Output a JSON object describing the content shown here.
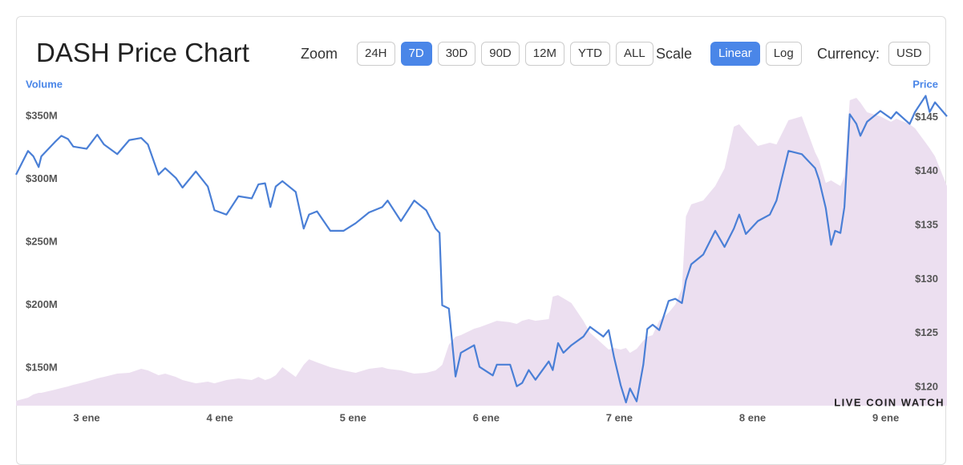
{
  "controls": {
    "zoom_label": "Zoom",
    "zoom_options": [
      {
        "label": "24H"
      },
      {
        "label": "7D",
        "active": true
      },
      {
        "label": "30D"
      },
      {
        "label": "90D"
      },
      {
        "label": "12M"
      },
      {
        "label": "YTD"
      },
      {
        "label": "ALL"
      }
    ],
    "scale_label": "Scale",
    "scale_options": [
      {
        "label": "Linear",
        "active": true
      },
      {
        "label": "Log"
      }
    ],
    "currency_label": "Currency:",
    "currency": "USD"
  },
  "watermark": "LIVE COIN WATCH",
  "chart_data": {
    "type": "line",
    "title": "DASH Price Chart",
    "ylabel": "Volume",
    "y2label": "Price",
    "grid": false,
    "x": [
      2.47,
      2.56,
      2.6,
      2.64,
      2.66,
      2.76,
      2.81,
      2.86,
      2.9,
      3,
      3.08,
      3.13,
      3.23,
      3.32,
      3.41,
      3.46,
      3.54,
      3.59,
      3.67,
      3.72,
      3.82,
      3.91,
      3.96,
      4.05,
      4.14,
      4.24,
      4.29,
      4.34,
      4.38,
      4.42,
      4.47,
      4.57,
      4.63,
      4.67,
      4.73,
      4.83,
      4.93,
      5.02,
      5.12,
      5.22,
      5.26,
      5.36,
      5.46,
      5.55,
      5.62,
      5.65,
      5.67,
      5.72,
      5.77,
      5.81,
      5.91,
      5.95,
      6.05,
      6.08,
      6.18,
      6.23,
      6.27,
      6.32,
      6.37,
      6.47,
      6.5,
      6.54,
      6.58,
      6.64,
      6.73,
      6.78,
      6.88,
      6.92,
      6.96,
      7.01,
      7.05,
      7.08,
      7.13,
      7.18,
      7.21,
      7.25,
      7.3,
      7.37,
      7.42,
      7.47,
      7.5,
      7.54,
      7.63,
      7.72,
      7.79,
      7.86,
      7.9,
      7.95,
      8.04,
      8.13,
      8.18,
      8.27,
      8.37,
      8.47,
      8.5,
      8.55,
      8.59,
      8.62,
      8.66,
      8.69,
      8.73,
      8.78,
      8.81,
      8.86,
      8.96,
      9.04,
      9.08,
      9.18,
      9.22,
      9.3,
      9.33,
      9.37,
      9.46
    ],
    "xlim": [
      2.47,
      9.46
    ],
    "xticks": [
      {
        "value": 3,
        "label": "3 ene"
      },
      {
        "value": 4,
        "label": "4 ene"
      },
      {
        "value": 5,
        "label": "5 ene"
      },
      {
        "value": 6,
        "label": "6 ene"
      },
      {
        "value": 7,
        "label": "7 ene"
      },
      {
        "value": 8,
        "label": "8 ene"
      },
      {
        "value": 9,
        "label": "9 ene"
      }
    ],
    "ylim": [
      120,
      380
    ],
    "yticks": [
      {
        "value": 150,
        "label": "$150M"
      },
      {
        "value": 200,
        "label": "$200M"
      },
      {
        "value": 250,
        "label": "$250M"
      },
      {
        "value": 300,
        "label": "$300M"
      },
      {
        "value": 350,
        "label": "$350M"
      }
    ],
    "y2lim": [
      118.3,
      148.6
    ],
    "y2ticks": [
      {
        "value": 120,
        "label": "$120"
      },
      {
        "value": 125,
        "label": "$125"
      },
      {
        "value": 130,
        "label": "$130"
      },
      {
        "value": 135,
        "label": "$135"
      },
      {
        "value": 140,
        "label": "$140"
      },
      {
        "value": 145,
        "label": "$145"
      }
    ],
    "series": [
      {
        "type": "area",
        "color": "#ecdff0",
        "values": [
          123.8,
          126.4,
          128.9,
          130.2,
          130.2,
          132.7,
          134.0,
          135.3,
          136.6,
          139.1,
          141.7,
          142.9,
          145.5,
          146.1,
          149.3,
          148.0,
          144.2,
          145.5,
          142.9,
          140.4,
          137.8,
          139.1,
          137.8,
          140.4,
          141.7,
          140.4,
          142.9,
          140.4,
          141.7,
          144.2,
          150.6,
          142.9,
          152.5,
          156.9,
          154.4,
          150.6,
          148.0,
          146.1,
          149.3,
          150.6,
          149.3,
          148.0,
          145.5,
          146.1,
          148.0,
          150.6,
          152.5,
          168.4,
          174.8,
          176.1,
          181.2,
          182.4,
          186.3,
          187.5,
          186.3,
          185.0,
          187.5,
          188.8,
          187.5,
          188.8,
          206.7,
          207.9,
          205.4,
          201.6,
          187.5,
          178.0,
          168.4,
          164.6,
          165.9,
          164.6,
          165.9,
          162.0,
          165.2,
          171.6,
          174.8,
          176.1,
          187.5,
          193.9,
          200.3,
          213.0,
          270.4,
          280.0,
          283.1,
          294.6,
          308.6,
          341.8,
          343.7,
          337.3,
          326.5,
          329.0,
          327.7,
          346.9,
          350.0,
          321.4,
          315.0,
          297.1,
          299.1,
          297.1,
          294.6,
          302.2,
          362.8,
          364.7,
          360.9,
          353.2,
          350.0,
          345.6,
          348.1,
          343.7,
          340.5,
          329.0,
          324.6,
          318.2,
          294.6
        ]
      },
      {
        "type": "line",
        "color": "#4a7fd6",
        "axis": "y2",
        "values": [
          139.7,
          141.9,
          141.4,
          140.4,
          141.4,
          142.7,
          143.3,
          143.0,
          142.3,
          142.1,
          143.4,
          142.5,
          141.6,
          142.9,
          143.1,
          142.5,
          139.7,
          140.3,
          139.4,
          138.5,
          140.0,
          138.6,
          136.4,
          136.0,
          137.7,
          137.5,
          138.8,
          138.9,
          136.7,
          138.6,
          139.1,
          138.1,
          134.7,
          136.0,
          136.3,
          134.5,
          134.5,
          135.2,
          136.2,
          136.7,
          137.3,
          135.4,
          137.3,
          136.4,
          134.7,
          134.3,
          127.6,
          127.3,
          121.0,
          123.2,
          123.9,
          121.9,
          121.1,
          122.1,
          122.1,
          120.1,
          120.4,
          121.6,
          120.7,
          122.4,
          121.6,
          124.1,
          123.2,
          123.9,
          124.7,
          125.6,
          124.7,
          125.3,
          122.8,
          120.2,
          118.6,
          119.9,
          118.7,
          122.1,
          125.4,
          125.8,
          125.3,
          128.0,
          128.2,
          127.8,
          129.9,
          131.4,
          132.3,
          134.5,
          133.0,
          134.7,
          136.0,
          134.2,
          135.4,
          136.0,
          137.3,
          141.9,
          141.6,
          140.3,
          139.2,
          136.6,
          133.2,
          134.5,
          134.3,
          136.7,
          145.3,
          144.4,
          143.3,
          144.6,
          145.6,
          144.9,
          145.5,
          144.4,
          145.5,
          147.0,
          145.5,
          146.4,
          145.1
        ]
      }
    ]
  }
}
